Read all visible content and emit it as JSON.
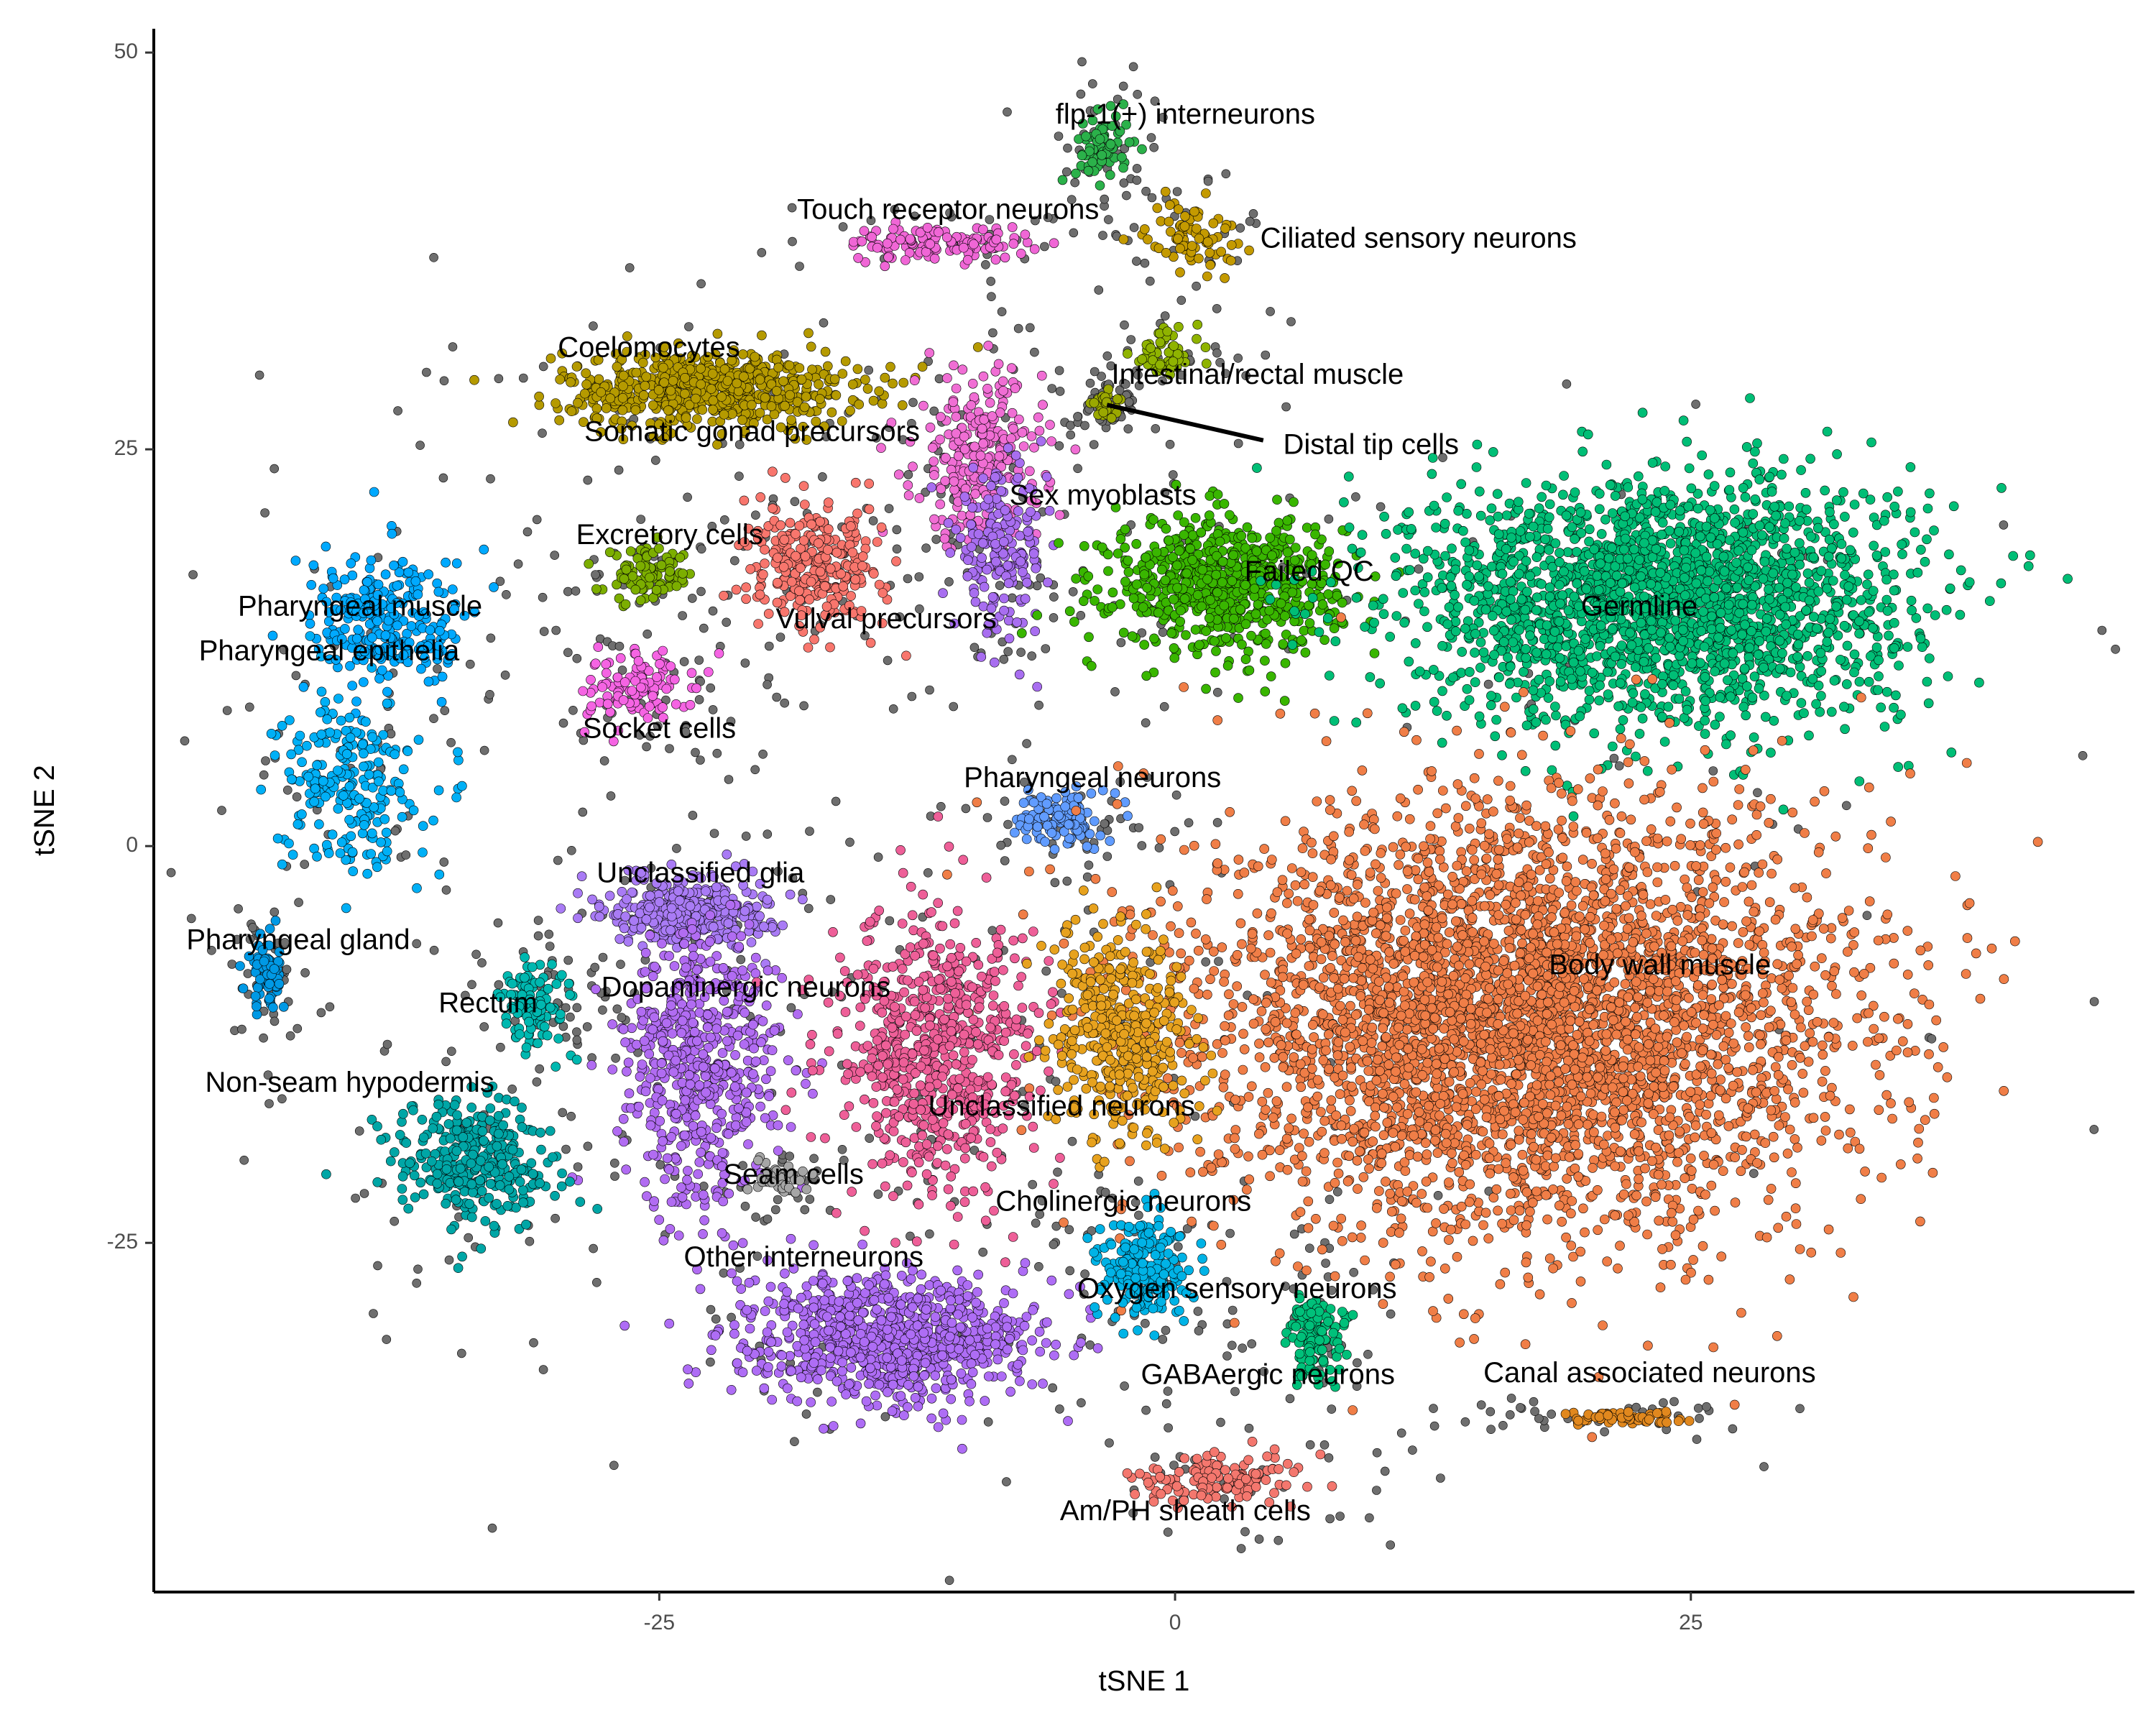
{
  "chart_data": {
    "type": "scatter",
    "title": "",
    "xlabel": "tSNE 1",
    "ylabel": "tSNE 2",
    "xlim": [
      -49.5,
      46.5
    ],
    "ylim": [
      -47.0,
      51.5
    ],
    "x_ticks": [
      -25,
      0,
      25
    ],
    "x_tick_labels": [
      "-25",
      "0",
      "25"
    ],
    "y_ticks": [
      -25,
      0,
      25,
      50
    ],
    "y_tick_labels": [
      "-25",
      "0",
      "25",
      "50"
    ],
    "grid": false,
    "legend": "none",
    "point_outline_color": "#000000",
    "clusters": [
      {
        "label": "flp-1(+) interneurons",
        "color": "#2BB14A",
        "center": [
          -3.5,
          44.0
        ],
        "spread": [
          1.2,
          2.0
        ],
        "count": 70,
        "label_pos": [
          0.5,
          46.0
        ]
      },
      {
        "label": "Touch receptor neurons",
        "color": "#F066D6",
        "center": [
          -11.5,
          38.0
        ],
        "spread": [
          4.0,
          1.0
        ],
        "count": 120,
        "label_pos": [
          -11.0,
          40.0
        ]
      },
      {
        "label": "Ciliated sensory neurons",
        "color": "#C49A00",
        "center": [
          0.8,
          38.5
        ],
        "spread": [
          2.0,
          2.0
        ],
        "count": 80,
        "label_pos": [
          11.8,
          38.2
        ]
      },
      {
        "label": "Coelomocytes",
        "color": "#B59A00",
        "center": [
          -22.5,
          28.8
        ],
        "spread": [
          6.5,
          2.2
        ],
        "count": 650,
        "label_pos": [
          -25.5,
          31.3
        ]
      },
      {
        "label": "Somatic gonad precursors",
        "color": "#F06ED4",
        "center": [
          -9.5,
          24.5
        ],
        "spread": [
          2.8,
          5.0
        ],
        "count": 260,
        "label_pos": [
          -20.5,
          26.0
        ]
      },
      {
        "label": "Intestinal/rectal muscle",
        "color": "#8FB300",
        "center": [
          -0.5,
          31.0
        ],
        "spread": [
          1.5,
          1.5
        ],
        "count": 60,
        "label_pos": [
          4.0,
          29.6
        ]
      },
      {
        "label": "Distal tip cells",
        "color": "#9AA800",
        "center": [
          -3.3,
          27.8
        ],
        "spread": [
          0.7,
          0.7
        ],
        "count": 30,
        "label_pos": [
          9.5,
          25.2
        ]
      },
      {
        "label": "Sex myoblasts",
        "color": "#A86EF0",
        "center": [
          -8.5,
          18.5
        ],
        "spread": [
          2.0,
          4.5
        ],
        "count": 180,
        "label_pos": [
          -3.5,
          22.0
        ]
      },
      {
        "label": "Excretory cells",
        "color": "#7CAE00",
        "center": [
          -25.5,
          17.0
        ],
        "spread": [
          2.0,
          1.5
        ],
        "count": 90,
        "label_pos": [
          -24.5,
          19.5
        ]
      },
      {
        "label": "Failed QC",
        "color": "#39B600",
        "center": [
          2.5,
          16.5
        ],
        "spread": [
          5.0,
          3.8
        ],
        "count": 700,
        "label_pos": [
          6.5,
          17.2
        ]
      },
      {
        "label": "Germline",
        "color": "#00BE76",
        "center": [
          23.5,
          15.5
        ],
        "spread": [
          11.0,
          7.0
        ],
        "count": 2200,
        "label_pos": [
          22.5,
          15.0
        ]
      },
      {
        "label": "Pharyngeal muscle",
        "color": "#00A9FF",
        "center": [
          -38.0,
          14.0
        ],
        "spread": [
          3.5,
          4.0
        ],
        "count": 260,
        "label_pos": [
          -39.5,
          15.0
        ]
      },
      {
        "label": "Pharyngeal epithelia",
        "color": "#00B0F6",
        "center": [
          -40.0,
          4.0
        ],
        "spread": [
          3.0,
          5.0
        ],
        "count": 230,
        "label_pos": [
          -41.0,
          12.2
        ]
      },
      {
        "label": "Vulval precursors",
        "color": "#F8766D",
        "center": [
          -17.5,
          17.5
        ],
        "spread": [
          3.0,
          3.5
        ],
        "count": 280,
        "label_pos": [
          -14.0,
          14.2
        ]
      },
      {
        "label": "Socket cells",
        "color": "#F564E3",
        "center": [
          -26.0,
          10.0
        ],
        "spread": [
          2.5,
          2.0
        ],
        "count": 110,
        "label_pos": [
          -25.0,
          7.3
        ]
      },
      {
        "label": "Pharyngeal neurons",
        "color": "#619CFF",
        "center": [
          -5.5,
          1.8
        ],
        "spread": [
          1.8,
          1.6
        ],
        "count": 110,
        "label_pos": [
          -4.0,
          4.2
        ]
      },
      {
        "label": "Unclassified glia",
        "color": "#A97BF5",
        "center": [
          -23.5,
          -4.0
        ],
        "spread": [
          3.5,
          2.0
        ],
        "count": 350,
        "label_pos": [
          -23.0,
          -1.8
        ]
      },
      {
        "label": "Pharyngeal gland",
        "color": "#0099E5",
        "center": [
          -44.0,
          -8.0
        ],
        "spread": [
          0.9,
          2.2
        ],
        "count": 70,
        "label_pos": [
          -42.5,
          -6.0
        ]
      },
      {
        "label": "Rectum",
        "color": "#00B8B0",
        "center": [
          -31.0,
          -10.0
        ],
        "spread": [
          1.5,
          2.5
        ],
        "count": 110,
        "label_pos": [
          -33.3,
          -10.0
        ]
      },
      {
        "label": "Dopaminergic neurons",
        "color": "#B16CF2",
        "center": [
          -23.0,
          -14.0
        ],
        "spread": [
          3.5,
          8.0
        ],
        "count": 560,
        "label_pos": [
          -20.8,
          -9.0
        ]
      },
      {
        "label": "Body wall muscle",
        "color": "#F07E47",
        "center": [
          17.0,
          -11.0
        ],
        "spread": [
          14.0,
          12.0
        ],
        "count": 4200,
        "label_pos": [
          23.5,
          -7.6
        ]
      },
      {
        "label": "Non-seam hypodermis",
        "color": "#00A6A6",
        "center": [
          -34.0,
          -20.0
        ],
        "spread": [
          3.5,
          3.5
        ],
        "count": 340,
        "label_pos": [
          -40.0,
          -15.0
        ]
      },
      {
        "label": "Unclassified neurons",
        "color": "#EE5F98",
        "center": [
          -11.5,
          -13.0
        ],
        "spread": [
          4.5,
          8.0
        ],
        "count": 700,
        "label_pos": [
          -5.5,
          -16.5
        ]
      },
      {
        "label": "Seam cells",
        "color": "#A6A6A6",
        "center": [
          -19.0,
          -21.0
        ],
        "spread": [
          1.5,
          1.0
        ],
        "count": 40,
        "label_pos": [
          -18.5,
          -20.8
        ]
      },
      {
        "label": "Cholinergic neurons",
        "color": "#E7A21E",
        "center": [
          -2.5,
          -12.0
        ],
        "spread": [
          3.0,
          6.0
        ],
        "count": 420,
        "label_pos": [
          -2.5,
          -22.5
        ]
      },
      {
        "label": "Other interneurons",
        "color": "#AE6DF5",
        "center": [
          -14.0,
          -31.0
        ],
        "spread": [
          6.5,
          3.5
        ],
        "count": 900,
        "label_pos": [
          -18.0,
          -26.0
        ]
      },
      {
        "label": "Oxygen sensory neurons",
        "color": "#00B3E6",
        "center": [
          -1.5,
          -26.5
        ],
        "spread": [
          2.0,
          3.0
        ],
        "count": 200,
        "label_pos": [
          3.0,
          -28.0
        ]
      },
      {
        "label": "GABAergic neurons",
        "color": "#00C07A",
        "center": [
          6.8,
          -31.0
        ],
        "spread": [
          1.4,
          2.5
        ],
        "count": 120,
        "label_pos": [
          4.5,
          -33.4
        ]
      },
      {
        "label": "Canal associated neurons",
        "color": "#E1881E",
        "center": [
          21.5,
          -36.0
        ],
        "spread": [
          2.6,
          0.4
        ],
        "count": 60,
        "label_pos": [
          23.0,
          -33.3
        ]
      },
      {
        "label": "Am/PH sheath cells",
        "color": "#F4776E",
        "center": [
          2.5,
          -40.0
        ],
        "spread": [
          4.0,
          1.5
        ],
        "count": 130,
        "label_pos": [
          0.5,
          -42.0
        ]
      }
    ],
    "gray_unassigned": {
      "color": "#6E6E6E",
      "count": 1200
    }
  }
}
